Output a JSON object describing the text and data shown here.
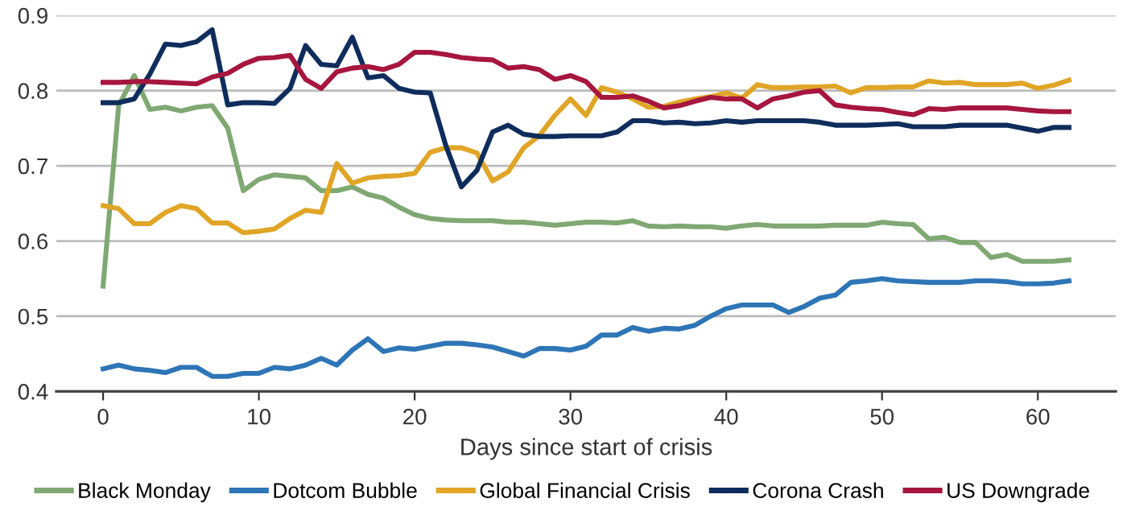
{
  "chart_data": {
    "type": "line",
    "xlabel": "Days since start of crisis",
    "x": [
      0,
      1,
      2,
      3,
      4,
      5,
      6,
      7,
      8,
      9,
      10,
      11,
      12,
      13,
      14,
      15,
      16,
      17,
      18,
      19,
      20,
      21,
      22,
      23,
      24,
      25,
      26,
      27,
      28,
      29,
      30,
      31,
      32,
      33,
      34,
      35,
      36,
      37,
      38,
      39,
      40,
      41,
      42,
      43,
      44,
      45,
      46,
      47,
      48,
      49,
      50,
      51,
      52,
      53,
      54,
      55,
      56,
      57,
      58,
      59,
      60,
      61,
      62
    ],
    "series": [
      {
        "name": "Black Monday",
        "color": "#7fa872",
        "values": [
          0.54,
          0.78,
          0.82,
          0.775,
          0.778,
          0.773,
          0.778,
          0.78,
          0.75,
          0.667,
          0.682,
          0.688,
          0.686,
          0.684,
          0.667,
          0.667,
          0.672,
          0.662,
          0.657,
          0.645,
          0.635,
          0.63,
          0.628,
          0.627,
          0.627,
          0.627,
          0.625,
          0.625,
          0.623,
          0.621,
          0.623,
          0.625,
          0.625,
          0.624,
          0.627,
          0.62,
          0.619,
          0.62,
          0.619,
          0.619,
          0.617,
          0.62,
          0.622,
          0.62,
          0.62,
          0.62,
          0.62,
          0.621,
          0.621,
          0.621,
          0.625,
          0.623,
          0.622,
          0.603,
          0.605,
          0.598,
          0.598,
          0.578,
          0.582,
          0.573,
          0.573,
          0.573,
          0.575
        ]
      },
      {
        "name": "Dotcom Bubble",
        "color": "#2e75b6",
        "values": [
          0.43,
          0.435,
          0.43,
          0.428,
          0.425,
          0.432,
          0.432,
          0.42,
          0.42,
          0.424,
          0.424,
          0.432,
          0.43,
          0.435,
          0.444,
          0.435,
          0.455,
          0.47,
          0.453,
          0.458,
          0.456,
          0.46,
          0.464,
          0.464,
          0.462,
          0.459,
          0.453,
          0.447,
          0.457,
          0.457,
          0.455,
          0.46,
          0.475,
          0.475,
          0.485,
          0.48,
          0.484,
          0.483,
          0.488,
          0.5,
          0.51,
          0.515,
          0.515,
          0.515,
          0.505,
          0.513,
          0.524,
          0.528,
          0.545,
          0.547,
          0.55,
          0.547,
          0.546,
          0.545,
          0.545,
          0.545,
          0.547,
          0.547,
          0.546,
          0.543,
          0.543,
          0.544,
          0.547
        ]
      },
      {
        "name": "Global Financial Crisis",
        "color": "#e0a526",
        "values": [
          0.647,
          0.643,
          0.623,
          0.623,
          0.638,
          0.647,
          0.643,
          0.624,
          0.624,
          0.611,
          0.613,
          0.616,
          0.63,
          0.641,
          0.638,
          0.703,
          0.677,
          0.684,
          0.686,
          0.687,
          0.69,
          0.718,
          0.724,
          0.724,
          0.717,
          0.68,
          0.692,
          0.724,
          0.74,
          0.767,
          0.789,
          0.767,
          0.804,
          0.798,
          0.789,
          0.778,
          0.779,
          0.785,
          0.789,
          0.792,
          0.797,
          0.79,
          0.808,
          0.804,
          0.804,
          0.805,
          0.805,
          0.806,
          0.797,
          0.804,
          0.804,
          0.805,
          0.805,
          0.813,
          0.81,
          0.811,
          0.808,
          0.808,
          0.808,
          0.81,
          0.803,
          0.807,
          0.814
        ]
      },
      {
        "name": "Corona Crash",
        "color": "#0f2d5c",
        "values": [
          0.784,
          0.784,
          0.789,
          0.822,
          0.862,
          0.86,
          0.865,
          0.881,
          0.781,
          0.784,
          0.784,
          0.783,
          0.803,
          0.86,
          0.835,
          0.833,
          0.871,
          0.817,
          0.82,
          0.803,
          0.798,
          0.797,
          0.727,
          0.672,
          0.694,
          0.745,
          0.754,
          0.742,
          0.739,
          0.739,
          0.74,
          0.74,
          0.74,
          0.745,
          0.76,
          0.76,
          0.757,
          0.758,
          0.756,
          0.757,
          0.76,
          0.758,
          0.76,
          0.76,
          0.76,
          0.76,
          0.758,
          0.754,
          0.754,
          0.754,
          0.755,
          0.756,
          0.752,
          0.752,
          0.752,
          0.754,
          0.754,
          0.754,
          0.754,
          0.75,
          0.746,
          0.751,
          0.751
        ]
      },
      {
        "name": "US Downgrade",
        "color": "#a6163e",
        "values": [
          0.811,
          0.811,
          0.812,
          0.812,
          0.811,
          0.81,
          0.809,
          0.818,
          0.823,
          0.835,
          0.843,
          0.844,
          0.847,
          0.815,
          0.803,
          0.825,
          0.83,
          0.832,
          0.828,
          0.835,
          0.851,
          0.851,
          0.848,
          0.844,
          0.842,
          0.841,
          0.83,
          0.832,
          0.828,
          0.815,
          0.82,
          0.812,
          0.791,
          0.791,
          0.793,
          0.786,
          0.777,
          0.78,
          0.786,
          0.791,
          0.789,
          0.789,
          0.777,
          0.789,
          0.793,
          0.798,
          0.8,
          0.781,
          0.778,
          0.776,
          0.775,
          0.771,
          0.768,
          0.776,
          0.775,
          0.777,
          0.777,
          0.777,
          0.777,
          0.775,
          0.773,
          0.772,
          0.772
        ]
      }
    ],
    "xlim": [
      -3,
      65
    ],
    "xticks": [
      0,
      10,
      20,
      30,
      40,
      50,
      60
    ],
    "ylim": [
      0.4,
      0.9
    ],
    "yticks": [
      0.4,
      0.5,
      0.6,
      0.7,
      0.8,
      0.9
    ],
    "grid": "y",
    "legend": "bottom",
    "line_style": "solid",
    "marker": "none"
  }
}
